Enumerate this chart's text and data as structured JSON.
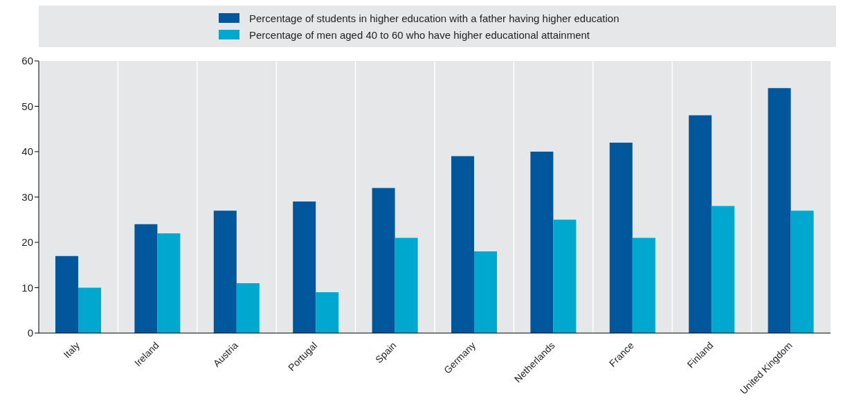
{
  "chart_data": {
    "type": "bar",
    "categories": [
      "Italy",
      "Ireland",
      "Austria",
      "Portugal",
      "Spain",
      "Germany",
      "Netherlands",
      "France",
      "Finland",
      "United Kingdom"
    ],
    "series": [
      {
        "name": "Percentage of students in higher education with a father having higher education",
        "color": "#00579c",
        "values": [
          17,
          24,
          27,
          29,
          32,
          39,
          40,
          42,
          48,
          54
        ]
      },
      {
        "name": "Percentage of men aged 40 to 60 who have higher educational attainment",
        "color": "#00a7cf",
        "values": [
          10,
          22,
          11,
          9,
          21,
          18,
          25,
          21,
          28,
          27
        ]
      }
    ],
    "ylim": [
      0,
      60
    ],
    "yticks": [
      0,
      10,
      20,
      30,
      40,
      50,
      60
    ],
    "grid": "x",
    "legend": "top"
  }
}
